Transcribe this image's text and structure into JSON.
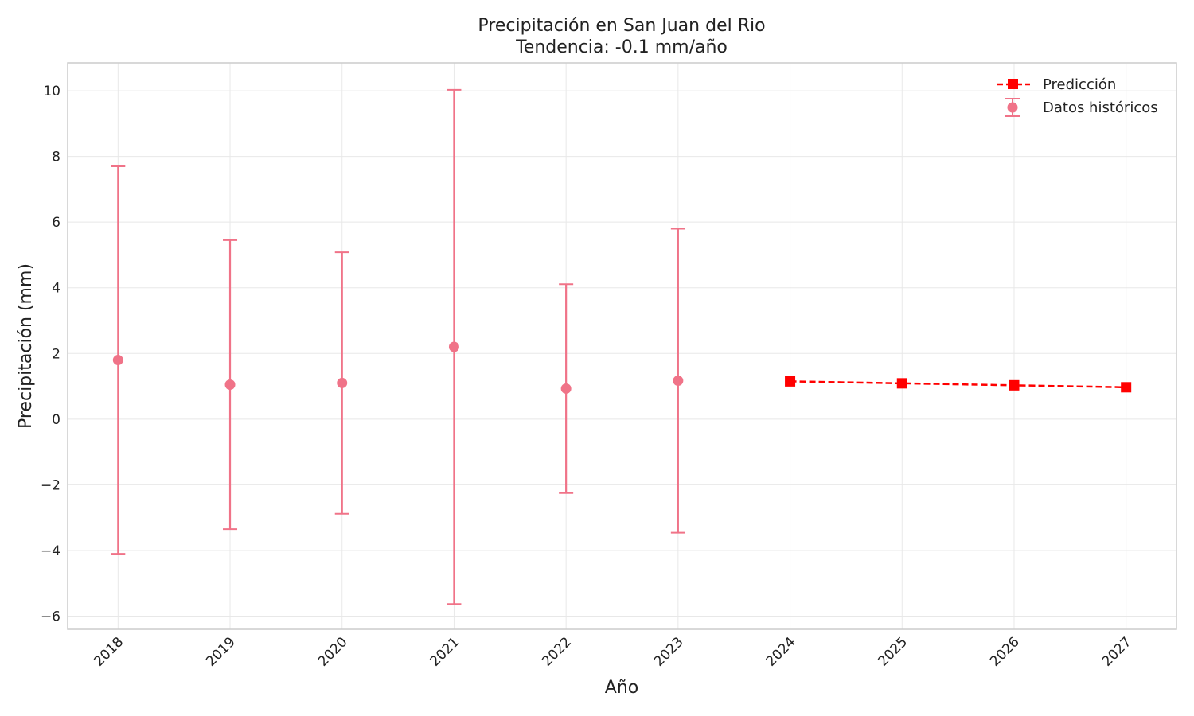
{
  "chart_data": {
    "type": "line",
    "title": "Precipitación en San Juan del Rio",
    "subtitle": "Tendencia: -0.1 mm/año",
    "xlabel": "Año",
    "ylabel": "Precipitación (mm)",
    "xlim": [
      2017.55,
      2027.45
    ],
    "ylim": [
      -6.4,
      10.85
    ],
    "x_ticks": [
      "2018",
      "2019",
      "2020",
      "2021",
      "2022",
      "2023",
      "2024",
      "2025",
      "2026",
      "2027"
    ],
    "y_ticks": [
      -6,
      -4,
      -2,
      0,
      2,
      4,
      6,
      8,
      10
    ],
    "y_tick_labels": [
      "−6",
      "−4",
      "−2",
      "0",
      "2",
      "4",
      "6",
      "8",
      "10"
    ],
    "grid": true,
    "legend_position": "top-right",
    "series": [
      {
        "name": "Datos históricos",
        "kind": "errorbar",
        "color": "#f07388",
        "x": [
          2018,
          2019,
          2020,
          2021,
          2022,
          2023
        ],
        "y": [
          1.8,
          1.05,
          1.1,
          2.2,
          0.93,
          1.17
        ],
        "err": [
          5.9,
          4.4,
          3.98,
          7.83,
          3.18,
          4.63
        ]
      },
      {
        "name": "Predicción",
        "kind": "dashed-line-square",
        "color": "#ff0000",
        "x": [
          2024,
          2025,
          2026,
          2027
        ],
        "y": [
          1.15,
          1.09,
          1.03,
          0.97
        ]
      }
    ]
  }
}
